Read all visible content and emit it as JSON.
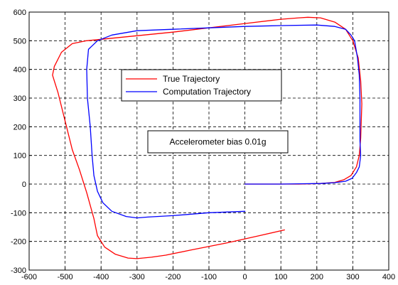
{
  "chart_data": {
    "type": "line",
    "title": "",
    "xlabel": "",
    "ylabel": "",
    "xlim": [
      -600,
      400
    ],
    "ylim": [
      -300,
      600
    ],
    "x_ticks": [
      -600,
      -500,
      -400,
      -300,
      -200,
      -100,
      0,
      100,
      200,
      300,
      400
    ],
    "y_ticks": [
      -300,
      -200,
      -100,
      0,
      100,
      200,
      300,
      400,
      500,
      600
    ],
    "grid": true,
    "legend_position": "upper-middle",
    "annotation": "Accelerometer bias 0.01g",
    "series": [
      {
        "name": "True Trajectory",
        "color": "#ff0000",
        "x": [
          110,
          40,
          -50,
          -150,
          -220,
          -260,
          -285,
          -300,
          -325,
          -360,
          -390,
          -410,
          -420,
          -440,
          -460,
          -480,
          -500,
          -520,
          -530,
          -535,
          -530,
          -510,
          -480,
          -440,
          -400,
          -200,
          0,
          100,
          150,
          175,
          210,
          250,
          280,
          300,
          315,
          322,
          325,
          322,
          318,
          310,
          295,
          275,
          250,
          210,
          180,
          150,
          100,
          0
        ],
        "y": [
          -160,
          -180,
          -205,
          -230,
          -248,
          -255,
          -258,
          -260,
          -258,
          -245,
          -220,
          -180,
          -120,
          -30,
          50,
          120,
          220,
          320,
          360,
          380,
          410,
          460,
          490,
          500,
          505,
          530,
          560,
          575,
          580,
          582,
          580,
          565,
          540,
          500,
          440,
          360,
          280,
          160,
          100,
          60,
          30,
          15,
          6,
          2,
          1,
          0,
          0,
          0
        ],
        "values_are_approximate": true
      },
      {
        "name": "Computation Trajectory",
        "color": "#0000ff",
        "x": [
          0,
          -100,
          -200,
          -270,
          -300,
          -330,
          -370,
          -395,
          -410,
          -420,
          -425,
          -430,
          -438,
          -440,
          -435,
          -410,
          -370,
          -300,
          -200,
          -100,
          0,
          100,
          200,
          250,
          280,
          295,
          305,
          313,
          318,
          320,
          320,
          320,
          322,
          318,
          310,
          298,
          280,
          250,
          210,
          150,
          100,
          0
        ],
        "y": [
          -95,
          -100,
          -110,
          -115,
          -118,
          -113,
          -95,
          -65,
          -25,
          30,
          100,
          200,
          300,
          400,
          470,
          500,
          520,
          535,
          540,
          545,
          550,
          553,
          555,
          550,
          540,
          520,
          500,
          440,
          380,
          300,
          220,
          150,
          100,
          60,
          40,
          20,
          10,
          5,
          2,
          1,
          0,
          0
        ],
        "values_are_approximate": true
      }
    ]
  }
}
